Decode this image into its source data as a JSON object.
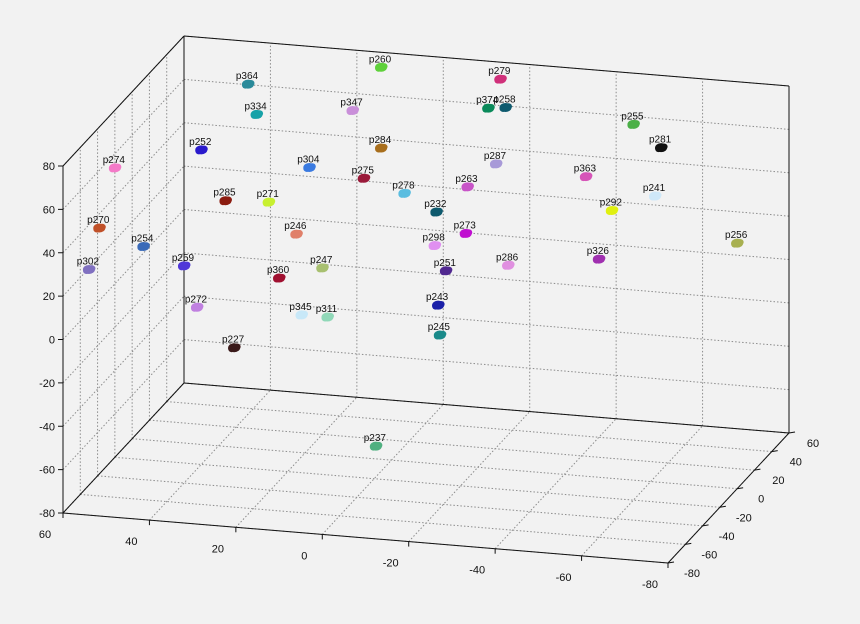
{
  "chart_data": {
    "type": "scatter",
    "projection": "3d",
    "title": "",
    "xlabel": "",
    "ylabel": "",
    "zlabel": "",
    "grid": true,
    "background_color": "#f2f2f2",
    "axes_color": "#111111",
    "grid_color": "#8c8c8c",
    "xlim": [
      -80,
      60
    ],
    "ylim": [
      -80,
      60
    ],
    "zlim": [
      -80,
      80
    ],
    "x_ticks": [
      60,
      40,
      20,
      0,
      -20,
      -40,
      -60,
      -80
    ],
    "x_tick_labels": [
      "60",
      "40",
      "20",
      "0",
      "-20",
      "-40",
      "-60",
      "-80"
    ],
    "y_ticks": [
      -80,
      -60,
      -40,
      -20,
      0,
      20,
      40,
      60
    ],
    "y_tick_labels": [
      "-80",
      "-60",
      "-40",
      "-20",
      "0",
      "20",
      "40",
      "60"
    ],
    "z_ticks": [
      -80,
      -60,
      -40,
      -20,
      0,
      20,
      40,
      60,
      80
    ],
    "z_tick_labels": [
      "-80",
      "-60",
      "-40",
      "-20",
      "0",
      "20",
      "40",
      "60",
      "80"
    ],
    "points": [
      {
        "label": "p364",
        "x": 44,
        "y": 54,
        "z": 63,
        "color": "#2a8a9a"
      },
      {
        "label": "p260",
        "x": 14,
        "y": 58,
        "z": 74,
        "color": "#5fd13b"
      },
      {
        "label": "p279",
        "x": -14,
        "y": 56,
        "z": 74,
        "color": "#d0307a"
      },
      {
        "label": "p347",
        "x": 18,
        "y": 45,
        "z": 59,
        "color": "#c98fd9"
      },
      {
        "label": "p374",
        "x": -12,
        "y": 52,
        "z": 62,
        "color": "#0a8a5a"
      },
      {
        "label": "p258",
        "x": -16,
        "y": 52,
        "z": 63,
        "color": "#0e5a6e"
      },
      {
        "label": "p334",
        "x": 40,
        "y": 44,
        "z": 54,
        "color": "#17a2a8"
      },
      {
        "label": "p255",
        "x": -46,
        "y": 50,
        "z": 61,
        "color": "#4cb048"
      },
      {
        "label": "p252",
        "x": 50,
        "y": 30,
        "z": 42,
        "color": "#2a1acc"
      },
      {
        "label": "p284",
        "x": 10,
        "y": 38,
        "z": 46,
        "color": "#a86e1c"
      },
      {
        "label": "p281",
        "x": -54,
        "y": 42,
        "z": 55,
        "color": "#111111"
      },
      {
        "label": "p304",
        "x": 25,
        "y": 30,
        "z": 38,
        "color": "#3a7ae0"
      },
      {
        "label": "p287",
        "x": -17,
        "y": 36,
        "z": 44,
        "color": "#a89ad8"
      },
      {
        "label": "p274",
        "x": 68,
        "y": 20,
        "z": 35,
        "color": "#f47ac8"
      },
      {
        "label": "p275",
        "x": 12,
        "y": 28,
        "z": 36,
        "color": "#9a1a3a"
      },
      {
        "label": "p278",
        "x": 2,
        "y": 25,
        "z": 32,
        "color": "#5abde0"
      },
      {
        "label": "p263",
        "x": -12,
        "y": 28,
        "z": 36,
        "color": "#c855c8"
      },
      {
        "label": "p363",
        "x": -38,
        "y": 35,
        "z": 42,
        "color": "#d655b8"
      },
      {
        "label": "p241",
        "x": -55,
        "y": 30,
        "z": 38,
        "color": "#cfe8f8"
      },
      {
        "label": "p285",
        "x": 42,
        "y": 18,
        "z": 25,
        "color": "#8c1c10"
      },
      {
        "label": "p271",
        "x": 32,
        "y": 18,
        "z": 26,
        "color": "#c8f030"
      },
      {
        "label": "p232",
        "x": -6,
        "y": 22,
        "z": 26,
        "color": "#0e5a6e"
      },
      {
        "label": "p292",
        "x": -46,
        "y": 25,
        "z": 32,
        "color": "#e0f010"
      },
      {
        "label": "p273",
        "x": -14,
        "y": 16,
        "z": 20,
        "color": "#c010d0"
      },
      {
        "label": "p270",
        "x": 68,
        "y": 2,
        "z": 15,
        "color": "#c05028"
      },
      {
        "label": "p298",
        "x": -8,
        "y": 10,
        "z": 16,
        "color": "#e090f0"
      },
      {
        "label": "p246",
        "x": 24,
        "y": 10,
        "z": 16,
        "color": "#e0806a"
      },
      {
        "label": "p254",
        "x": 57,
        "y": -2,
        "z": 10,
        "color": "#3a6ab8"
      },
      {
        "label": "p256",
        "x": -76,
        "y": 20,
        "z": 24,
        "color": "#a8b050"
      },
      {
        "label": "p302",
        "x": 68,
        "y": -10,
        "z": 1,
        "color": "#8070c0"
      },
      {
        "label": "p259",
        "x": 47,
        "y": -5,
        "z": 4,
        "color": "#5038d8"
      },
      {
        "label": "p247",
        "x": 16,
        "y": 0,
        "z": 6,
        "color": "#a8c070"
      },
      {
        "label": "p360",
        "x": 25,
        "y": -5,
        "z": 2,
        "color": "#a01030"
      },
      {
        "label": "p251",
        "x": -12,
        "y": 3,
        "z": 8,
        "color": "#502890"
      },
      {
        "label": "p326",
        "x": -46,
        "y": 10,
        "z": 16,
        "color": "#a030b0"
      },
      {
        "label": "p286",
        "x": -26,
        "y": 5,
        "z": 12,
        "color": "#e090e0"
      },
      {
        "label": "p345",
        "x": 18,
        "y": -14,
        "z": -10,
        "color": "#c8e8f8"
      },
      {
        "label": "p311",
        "x": 12,
        "y": -14,
        "z": -10,
        "color": "#90d8b8"
      },
      {
        "label": "p243",
        "x": -12,
        "y": -6,
        "z": -4,
        "color": "#1a20a8"
      },
      {
        "label": "p272",
        "x": 42,
        "y": -15,
        "z": -10,
        "color": "#c080e0"
      },
      {
        "label": "p245",
        "x": -14,
        "y": -14,
        "z": -14,
        "color": "#1a8a8a"
      },
      {
        "label": "p227",
        "x": 32,
        "y": -22,
        "z": -24,
        "color": "#3a1a1a"
      },
      {
        "label": "p237",
        "x": -6,
        "y": -48,
        "z": -52,
        "color": "#50b080"
      }
    ]
  }
}
